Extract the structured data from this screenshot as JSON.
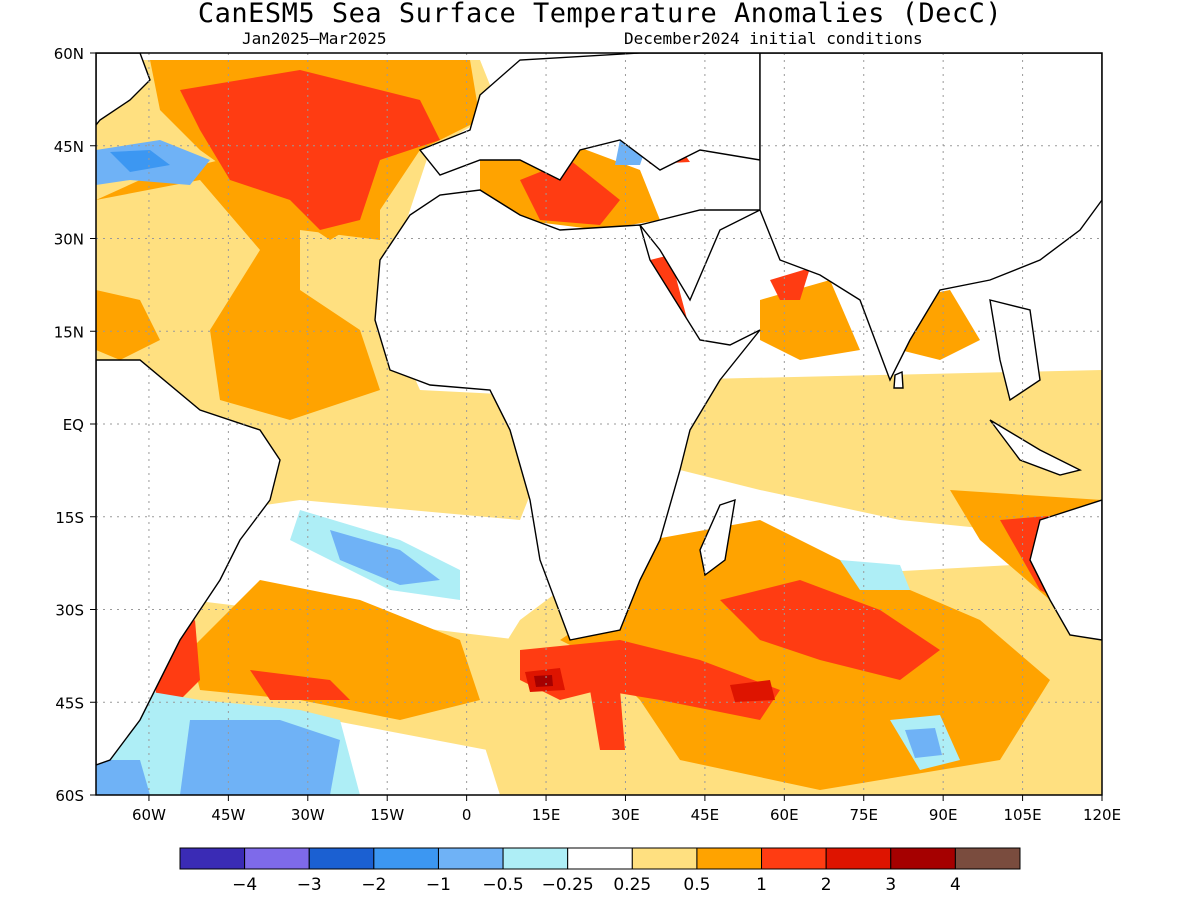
{
  "title": "CanESM5 Sea Surface Temperature Anomalies (DecC)",
  "subtitle_left": "Jan2025–Mar2025",
  "subtitle_right": "December2024 initial conditions",
  "map": {
    "projection": "equirectangular",
    "lon_range": [
      -70,
      120
    ],
    "lat_range": [
      -60,
      60
    ],
    "lon_ticks": [
      "60W",
      "45W",
      "30W",
      "15W",
      "0",
      "15E",
      "30E",
      "45E",
      "60E",
      "75E",
      "90E",
      "105E",
      "120E"
    ],
    "lat_ticks": [
      "60N",
      "45N",
      "30N",
      "15N",
      "EQ",
      "15S",
      "30S",
      "45S",
      "60S"
    ],
    "gridlines": true,
    "land_color": "#ffffff"
  },
  "colorbar": {
    "labels": [
      "−4",
      "−3",
      "−2",
      "−1",
      "−0.5",
      "−0.25",
      "0.25",
      "0.5",
      "1",
      "2",
      "3",
      "4"
    ],
    "colors": [
      "#3a2bb5",
      "#7e6aea",
      "#1b60d2",
      "#3c97f2",
      "#6fb2f6",
      "#aeeef6",
      "#ffffff",
      "#ffe080",
      "#ffa300",
      "#ff3c12",
      "#de1400",
      "#a50000",
      "#7a4c3e"
    ]
  }
}
